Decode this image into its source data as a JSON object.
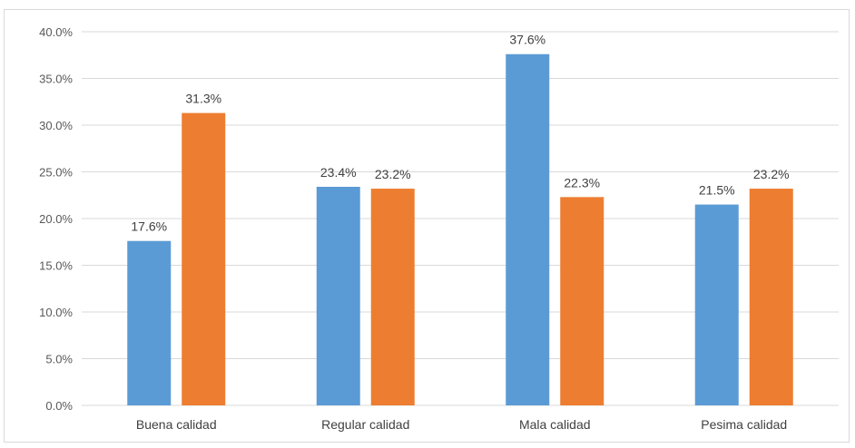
{
  "chart_data": {
    "type": "bar",
    "categories": [
      "Buena calidad",
      "Regular calidad",
      "Mala calidad",
      "Pesima calidad"
    ],
    "series": [
      {
        "values": [
          17.6,
          23.4,
          37.6,
          21.5
        ],
        "color": "#5b9bd5"
      },
      {
        "values": [
          31.3,
          23.2,
          22.3,
          23.2
        ],
        "color": "#ed7d31"
      }
    ],
    "data_labels": [
      [
        "17.6%",
        "23.4%",
        "37.6%",
        "21.5%"
      ],
      [
        "31.3%",
        "23.2%",
        "22.3%",
        "23.2%"
      ]
    ],
    "y_ticks": [
      "0.0%",
      "5.0%",
      "10.0%",
      "15.0%",
      "20.0%",
      "25.0%",
      "30.0%",
      "35.0%",
      "40.0%"
    ],
    "ylim": [
      0,
      40
    ],
    "grid": true,
    "legend": "none",
    "gridline_color": "#d9d9d9"
  }
}
